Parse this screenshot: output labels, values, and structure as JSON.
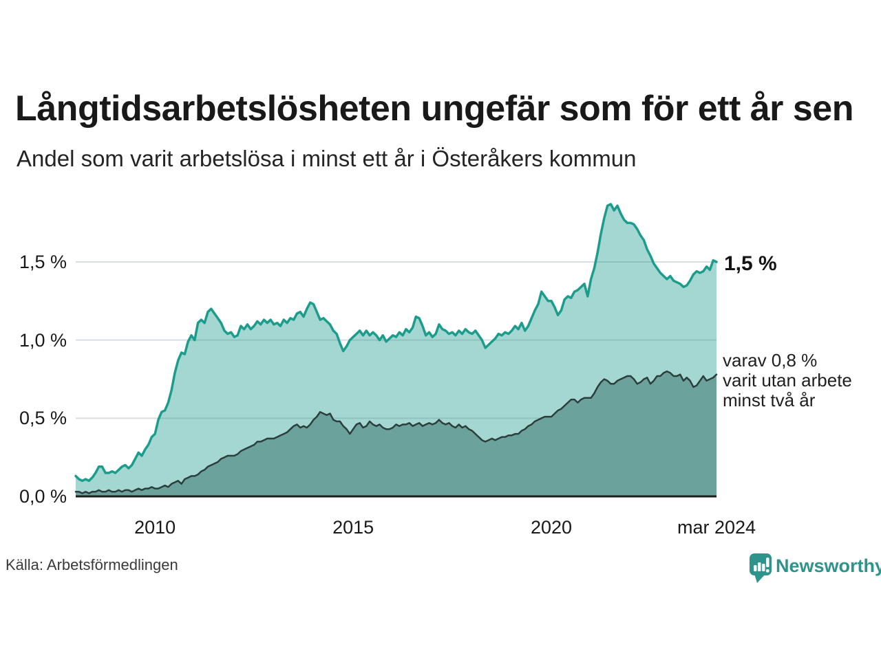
{
  "header": {
    "title": "Långtidsarbetslösheten ungefär som för ett år sen",
    "subtitle": "Andel som varit arbetslösa i minst ett år i Österåkers kommun"
  },
  "annotations": {
    "end_value_label": "1,5 %",
    "secondary_line1": "varav 0,8 %",
    "secondary_line2": "varit utan arbete",
    "secondary_line3": "minst två år"
  },
  "footer": {
    "source": "Källa: Arbetsförmedlingen",
    "logo_text": "Newsworthy"
  },
  "colors": {
    "accent_stroke": "#1b9c8c",
    "light_fill": "rgba(27,156,141,0.40)",
    "dark_stroke": "#2c3e3c",
    "dark_fill": "#6ba29b",
    "gridline": "#d9dde1",
    "baseline": "#1c1c1c",
    "logo": "#2d938b",
    "text": "#191919"
  },
  "chart_data": {
    "type": "area",
    "title": "Långtidsarbetslösheten ungefär som för ett år sen",
    "subtitle": "Andel som varit arbetslösa i minst ett år i Österåkers kommun",
    "unit": "%",
    "frequency": "monthly",
    "x_start": "2008-01",
    "x_end": "2024-03",
    "ylim": [
      0,
      1.9
    ],
    "grid": true,
    "legend": "direct labels at line ends",
    "y_ticks": [
      {
        "label": "0,0 %",
        "value": 0.0
      },
      {
        "label": "0,5 %",
        "value": 0.5
      },
      {
        "label": "1,0 %",
        "value": 1.0
      },
      {
        "label": "1,5 %",
        "value": 1.5
      }
    ],
    "x_ticks": [
      {
        "label": "2010",
        "month_index": 24
      },
      {
        "label": "2015",
        "month_index": 84
      },
      {
        "label": "2020",
        "month_index": 144
      },
      {
        "label": "mar 2024",
        "month_index": 194
      }
    ],
    "series": [
      {
        "name": "Arbetslösa minst ett år",
        "end_value": 1.5,
        "color": "#1b9c8c",
        "fill": "rgba(27,156,141,0.40)",
        "values": [
          0.13,
          0.11,
          0.1,
          0.11,
          0.1,
          0.12,
          0.15,
          0.19,
          0.19,
          0.15,
          0.15,
          0.16,
          0.15,
          0.17,
          0.19,
          0.2,
          0.18,
          0.2,
          0.24,
          0.28,
          0.26,
          0.3,
          0.33,
          0.38,
          0.4,
          0.49,
          0.54,
          0.55,
          0.6,
          0.68,
          0.79,
          0.87,
          0.92,
          0.91,
          0.99,
          1.03,
          1.0,
          1.11,
          1.13,
          1.11,
          1.18,
          1.2,
          1.17,
          1.14,
          1.11,
          1.06,
          1.04,
          1.05,
          1.02,
          1.03,
          1.09,
          1.07,
          1.1,
          1.07,
          1.09,
          1.12,
          1.1,
          1.13,
          1.11,
          1.13,
          1.1,
          1.11,
          1.09,
          1.13,
          1.11,
          1.14,
          1.13,
          1.17,
          1.18,
          1.15,
          1.2,
          1.24,
          1.23,
          1.18,
          1.13,
          1.14,
          1.12,
          1.1,
          1.06,
          1.04,
          0.98,
          0.93,
          0.96,
          1.0,
          1.02,
          1.04,
          1.06,
          1.03,
          1.06,
          1.03,
          1.05,
          1.03,
          1.0,
          1.03,
          0.99,
          1.01,
          1.03,
          1.02,
          1.05,
          1.03,
          1.07,
          1.05,
          1.08,
          1.15,
          1.14,
          1.09,
          1.03,
          1.05,
          1.02,
          1.04,
          1.1,
          1.07,
          1.06,
          1.04,
          1.05,
          1.03,
          1.06,
          1.04,
          1.07,
          1.05,
          1.04,
          1.06,
          1.03,
          1.0,
          0.95,
          0.97,
          0.99,
          1.01,
          1.04,
          1.03,
          1.05,
          1.04,
          1.06,
          1.09,
          1.07,
          1.11,
          1.06,
          1.09,
          1.14,
          1.19,
          1.23,
          1.31,
          1.28,
          1.25,
          1.25,
          1.21,
          1.16,
          1.19,
          1.26,
          1.28,
          1.27,
          1.31,
          1.32,
          1.34,
          1.36,
          1.28,
          1.39,
          1.46,
          1.56,
          1.68,
          1.78,
          1.86,
          1.87,
          1.83,
          1.86,
          1.81,
          1.77,
          1.75,
          1.75,
          1.74,
          1.71,
          1.67,
          1.64,
          1.58,
          1.54,
          1.49,
          1.46,
          1.43,
          1.41,
          1.39,
          1.41,
          1.38,
          1.37,
          1.36,
          1.34,
          1.35,
          1.38,
          1.42,
          1.44,
          1.43,
          1.44,
          1.47,
          1.45,
          1.51,
          1.5
        ]
      },
      {
        "name": "varav utan arbete minst två år",
        "end_value": 0.8,
        "color": "#2c3e3c",
        "fill": "#6ba29b",
        "values": [
          0.03,
          0.03,
          0.02,
          0.03,
          0.02,
          0.03,
          0.03,
          0.04,
          0.03,
          0.03,
          0.04,
          0.03,
          0.03,
          0.04,
          0.03,
          0.04,
          0.04,
          0.03,
          0.04,
          0.05,
          0.04,
          0.05,
          0.05,
          0.06,
          0.05,
          0.05,
          0.06,
          0.07,
          0.06,
          0.08,
          0.09,
          0.1,
          0.08,
          0.11,
          0.12,
          0.13,
          0.13,
          0.14,
          0.16,
          0.17,
          0.19,
          0.2,
          0.21,
          0.22,
          0.24,
          0.25,
          0.26,
          0.26,
          0.26,
          0.27,
          0.29,
          0.3,
          0.31,
          0.32,
          0.33,
          0.35,
          0.35,
          0.36,
          0.37,
          0.37,
          0.37,
          0.38,
          0.39,
          0.4,
          0.41,
          0.43,
          0.45,
          0.46,
          0.44,
          0.45,
          0.44,
          0.46,
          0.49,
          0.51,
          0.54,
          0.53,
          0.52,
          0.53,
          0.49,
          0.48,
          0.48,
          0.45,
          0.43,
          0.4,
          0.43,
          0.46,
          0.47,
          0.44,
          0.45,
          0.48,
          0.46,
          0.45,
          0.46,
          0.44,
          0.43,
          0.43,
          0.44,
          0.46,
          0.45,
          0.46,
          0.46,
          0.47,
          0.45,
          0.46,
          0.47,
          0.45,
          0.46,
          0.47,
          0.46,
          0.47,
          0.49,
          0.47,
          0.46,
          0.47,
          0.45,
          0.44,
          0.46,
          0.44,
          0.45,
          0.43,
          0.42,
          0.4,
          0.38,
          0.36,
          0.35,
          0.36,
          0.37,
          0.36,
          0.37,
          0.38,
          0.38,
          0.39,
          0.39,
          0.4,
          0.4,
          0.42,
          0.43,
          0.45,
          0.46,
          0.48,
          0.49,
          0.5,
          0.51,
          0.51,
          0.51,
          0.53,
          0.55,
          0.56,
          0.58,
          0.6,
          0.62,
          0.62,
          0.6,
          0.62,
          0.63,
          0.63,
          0.63,
          0.66,
          0.7,
          0.73,
          0.75,
          0.74,
          0.72,
          0.72,
          0.74,
          0.75,
          0.76,
          0.77,
          0.77,
          0.75,
          0.72,
          0.73,
          0.75,
          0.76,
          0.72,
          0.74,
          0.77,
          0.77,
          0.79,
          0.8,
          0.79,
          0.77,
          0.77,
          0.78,
          0.74,
          0.76,
          0.74,
          0.7,
          0.71,
          0.74,
          0.77,
          0.74,
          0.75,
          0.76,
          0.78
        ]
      }
    ]
  }
}
